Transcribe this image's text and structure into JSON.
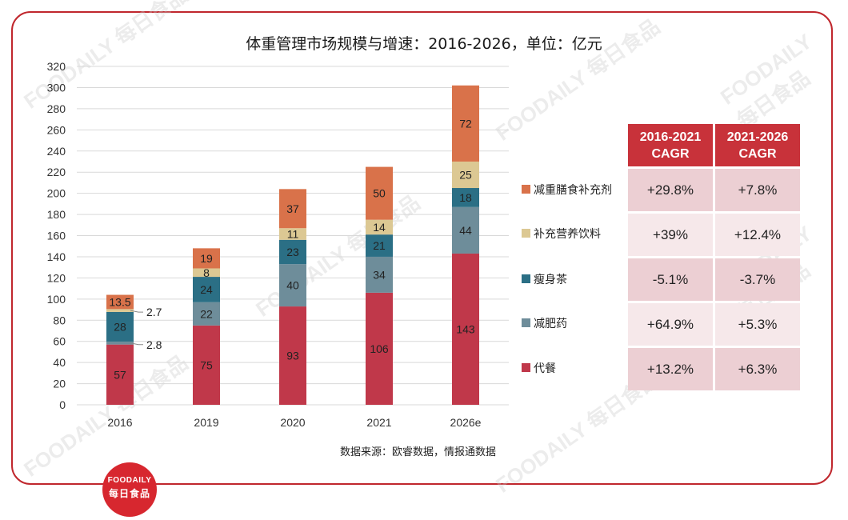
{
  "title": "体重管理市场规模与增速：2016-2026，单位：亿元",
  "source": "数据来源：欧睿数据，情报通数据",
  "logo": {
    "en": "FOODAILY",
    "cn": "每日食品"
  },
  "watermark": "FOODAILY 每日食品",
  "colors": {
    "meal": "#c0384a",
    "diet_drug": "#6e8d9a",
    "slim_tea": "#2b6f85",
    "nutrition_drink": "#dcc893",
    "meal_supplement": "#d9724a",
    "grid": "#d9d9d9",
    "axis_text": "#333333"
  },
  "chart_data": {
    "type": "bar",
    "stacked": true,
    "categories": [
      "2016",
      "2019",
      "2020",
      "2021",
      "2026e"
    ],
    "series": [
      {
        "name": "代餐",
        "key": "meal",
        "values": [
          57,
          75,
          93,
          106,
          143
        ]
      },
      {
        "name": "减肥药",
        "key": "diet_drug",
        "values": [
          2.8,
          22,
          40,
          34,
          44
        ]
      },
      {
        "name": "瘦身茶",
        "key": "slim_tea",
        "values": [
          28,
          24,
          23,
          21,
          18
        ]
      },
      {
        "name": "补充营养饮料",
        "key": "nutrition_drink",
        "values": [
          2.7,
          8,
          11,
          14,
          25
        ]
      },
      {
        "name": "减重膳食补充剂",
        "key": "meal_supplement",
        "values": [
          13.5,
          19,
          37,
          50,
          72
        ]
      }
    ],
    "ylim": [
      0,
      320
    ],
    "yticks": [
      0,
      20,
      40,
      60,
      80,
      100,
      120,
      140,
      160,
      180,
      200,
      220,
      240,
      260,
      280,
      300,
      320
    ],
    "grid": true,
    "legend_position": "right",
    "legend_order": [
      "减重膳食补充剂",
      "补充营养饮料",
      "瘦身茶",
      "减肥药",
      "代餐"
    ]
  },
  "cagr_table": {
    "headers": [
      [
        "2016-2021",
        "CAGR"
      ],
      [
        "2021-2026",
        "CAGR"
      ]
    ],
    "rows": [
      [
        "+29.8%",
        "+7.8%"
      ],
      [
        "+39%",
        "+12.4%"
      ],
      [
        "-5.1%",
        "-3.7%"
      ],
      [
        "+64.9%",
        "+5.3%"
      ],
      [
        "+13.2%",
        "+6.3%"
      ]
    ]
  }
}
